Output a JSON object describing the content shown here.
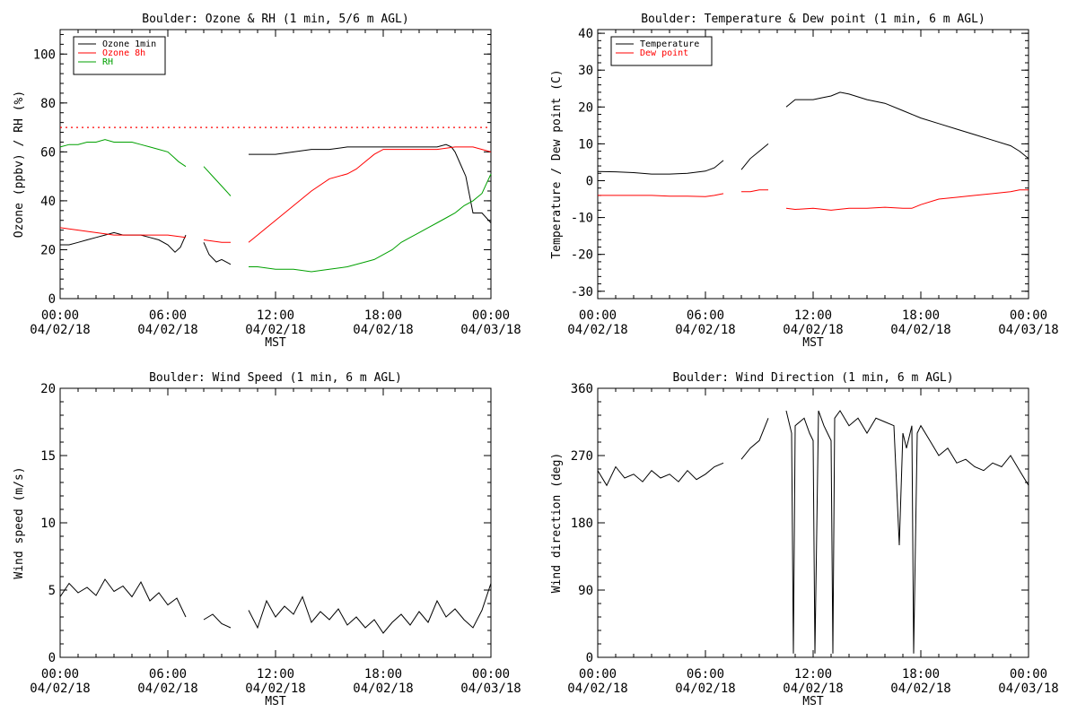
{
  "x_tick_labels": [
    [
      "00:00",
      "04/02/18"
    ],
    [
      "06:00",
      "04/02/18"
    ],
    [
      "12:00",
      "04/02/18"
    ],
    [
      "18:00",
      "04/02/18"
    ],
    [
      "00:00",
      "04/03/18"
    ]
  ],
  "chart_data": [
    {
      "type": "line",
      "title": "Boulder: Ozone & RH (1 min, 5/6 m AGL)",
      "xlabel": "MST",
      "ylabel": "Ozone (ppbv) / RH (%)",
      "xlim": [
        0,
        24
      ],
      "ylim": [
        0,
        110
      ],
      "yticks": [
        0,
        20,
        40,
        60,
        80,
        100
      ],
      "grid": false,
      "legend_position": "top-left",
      "reference_lines": [
        {
          "y": 70,
          "style": "dotted",
          "color": "#ff0000"
        }
      ],
      "series": [
        {
          "name": "Ozone 1min",
          "color": "#000000",
          "segments": [
            {
              "x": [
                0,
                0.5,
                1,
                1.5,
                2,
                2.5,
                3,
                3.5,
                4,
                4.5,
                5,
                5.5,
                6,
                6.4,
                6.7,
                7
              ],
              "y": [
                22,
                22,
                23,
                24,
                25,
                26,
                27,
                26,
                26,
                26,
                25,
                24,
                22,
                19,
                21,
                26
              ]
            },
            {
              "x": [
                8,
                8.3,
                8.7,
                9,
                9.5
              ],
              "y": [
                23,
                18,
                15,
                16,
                14
              ]
            },
            {
              "x": [
                10.5,
                11,
                12,
                13,
                14,
                15,
                16,
                17,
                18,
                19,
                20,
                20.5,
                21,
                21.5,
                21.8,
                22,
                22.3,
                22.6,
                23,
                23.5,
                24
              ],
              "y": [
                59,
                59,
                59,
                60,
                61,
                61,
                62,
                62,
                62,
                62,
                62,
                62,
                62,
                63,
                62,
                60,
                55,
                50,
                35,
                35,
                31
              ]
            }
          ]
        },
        {
          "name": "Ozone 8h",
          "color": "#ff0000",
          "segments": [
            {
              "x": [
                0,
                1,
                2,
                3,
                4,
                5,
                6,
                7
              ],
              "y": [
                29,
                28,
                27,
                26,
                26,
                26,
                26,
                25
              ]
            },
            {
              "x": [
                8,
                9,
                9.5
              ],
              "y": [
                24,
                23,
                23
              ]
            },
            {
              "x": [
                10.5,
                11,
                12,
                13,
                14,
                15,
                16,
                16.5,
                17,
                17.5,
                18,
                19,
                20,
                21,
                22,
                22.5,
                23,
                23.5,
                24
              ],
              "y": [
                23,
                26,
                32,
                38,
                44,
                49,
                51,
                53,
                56,
                59,
                61,
                61,
                61,
                61,
                62,
                62,
                62,
                61,
                60
              ]
            }
          ]
        },
        {
          "name": "RH",
          "color": "#00a000",
          "segments": [
            {
              "x": [
                0,
                0.5,
                1,
                1.5,
                2,
                2.5,
                3,
                3.5,
                4,
                4.5,
                5,
                5.5,
                6,
                6.3,
                6.6,
                7
              ],
              "y": [
                62,
                63,
                63,
                64,
                64,
                65,
                64,
                64,
                64,
                63,
                62,
                61,
                60,
                58,
                56,
                54
              ]
            },
            {
              "x": [
                8,
                8.5,
                9,
                9.5
              ],
              "y": [
                54,
                50,
                46,
                42
              ]
            },
            {
              "x": [
                10.5,
                11,
                12,
                13,
                14,
                15,
                16,
                17,
                17.5,
                18,
                18.5,
                19,
                19.5,
                20,
                20.5,
                21,
                21.5,
                22,
                22.5,
                23,
                23.5,
                24
              ],
              "y": [
                13,
                13,
                12,
                12,
                11,
                12,
                13,
                15,
                16,
                18,
                20,
                23,
                25,
                27,
                29,
                31,
                33,
                35,
                38,
                40,
                43,
                51
              ]
            }
          ]
        }
      ]
    },
    {
      "type": "line",
      "title": "Boulder: Temperature & Dew point (1 min, 6 m AGL)",
      "xlabel": "MST",
      "ylabel": "Temperature / Dew point (C)",
      "xlim": [
        0,
        24
      ],
      "ylim": [
        -32,
        41
      ],
      "yticks": [
        -30,
        -20,
        -10,
        0,
        10,
        20,
        30,
        40
      ],
      "grid": false,
      "legend_position": "top-left",
      "series": [
        {
          "name": "Temperature",
          "color": "#000000",
          "segments": [
            {
              "x": [
                0,
                1,
                2,
                3,
                4,
                5,
                6,
                6.5,
                7
              ],
              "y": [
                2.5,
                2.4,
                2.2,
                1.8,
                1.8,
                2.0,
                2.6,
                3.5,
                5.5
              ]
            },
            {
              "x": [
                8,
                8.5,
                9,
                9.5
              ],
              "y": [
                3,
                6,
                8,
                10
              ]
            },
            {
              "x": [
                10.5,
                11,
                11.5,
                12,
                12.5,
                13,
                13.5,
                14,
                15,
                16,
                17,
                18,
                19,
                20,
                21,
                22,
                23,
                23.5,
                24
              ],
              "y": [
                20,
                22,
                22,
                22,
                22.5,
                23,
                24,
                23.5,
                22,
                21,
                19,
                17,
                15.5,
                14,
                12.5,
                11,
                9.5,
                8,
                6
              ]
            }
          ]
        },
        {
          "name": "Dew point",
          "color": "#ff0000",
          "segments": [
            {
              "x": [
                0,
                1,
                2,
                3,
                4,
                5,
                6,
                6.5,
                7
              ],
              "y": [
                -4,
                -4,
                -4,
                -4,
                -4.2,
                -4.2,
                -4.3,
                -4,
                -3.5
              ]
            },
            {
              "x": [
                8,
                8.5,
                9,
                9.5
              ],
              "y": [
                -3,
                -3,
                -2.5,
                -2.5
              ]
            },
            {
              "x": [
                10.5,
                11,
                12,
                13,
                14,
                15,
                16,
                17,
                17.5,
                18,
                19,
                20,
                21,
                22,
                23,
                23.5,
                24
              ],
              "y": [
                -7.5,
                -7.8,
                -7.5,
                -8,
                -7.5,
                -7.5,
                -7.2,
                -7.5,
                -7.5,
                -6.5,
                -5,
                -4.5,
                -4,
                -3.5,
                -3,
                -2.5,
                -2.5
              ]
            }
          ]
        }
      ]
    },
    {
      "type": "line",
      "title": "Boulder: Wind Speed (1 min, 6 m AGL)",
      "xlabel": "MST",
      "ylabel": "Wind speed (m/s)",
      "xlim": [
        0,
        24
      ],
      "ylim": [
        0,
        20
      ],
      "yticks": [
        0,
        5,
        10,
        15,
        20
      ],
      "grid": false,
      "series": [
        {
          "color": "#000000",
          "segments": [
            {
              "x": [
                0,
                0.5,
                1,
                1.5,
                2,
                2.5,
                3,
                3.5,
                4,
                4.5,
                5,
                5.5,
                6,
                6.5,
                7
              ],
              "y": [
                4.5,
                5.5,
                4.8,
                5.2,
                4.6,
                5.8,
                4.9,
                5.3,
                4.5,
                5.6,
                4.2,
                4.8,
                3.9,
                4.4,
                3.0
              ]
            },
            {
              "x": [
                8,
                8.5,
                9,
                9.5
              ],
              "y": [
                2.8,
                3.2,
                2.5,
                2.2
              ]
            },
            {
              "x": [
                10.5,
                11,
                11.5,
                12,
                12.5,
                13,
                13.5,
                14,
                14.5,
                15,
                15.5,
                16,
                16.5,
                17,
                17.5,
                18,
                18.5,
                19,
                19.5,
                20,
                20.5,
                21,
                21.5,
                22,
                22.5,
                23,
                23.5,
                24
              ],
              "y": [
                3.5,
                2.2,
                4.2,
                3.0,
                3.8,
                3.2,
                4.5,
                2.6,
                3.4,
                2.8,
                3.6,
                2.4,
                3.0,
                2.2,
                2.8,
                1.8,
                2.6,
                3.2,
                2.4,
                3.4,
                2.6,
                4.2,
                3.0,
                3.6,
                2.8,
                2.2,
                3.5,
                5.5
              ]
            }
          ]
        }
      ]
    },
    {
      "type": "line",
      "title": "Boulder: Wind Direction (1 min, 6 m AGL)",
      "xlabel": "MST",
      "ylabel": "Wind direction (deg)",
      "xlim": [
        0,
        24
      ],
      "ylim": [
        0,
        360
      ],
      "yticks": [
        0,
        90,
        180,
        270,
        360
      ],
      "grid": false,
      "series": [
        {
          "color": "#000000",
          "segments": [
            {
              "x": [
                0,
                0.5,
                1,
                1.5,
                2,
                2.5,
                3,
                3.5,
                4,
                4.5,
                5,
                5.5,
                6,
                6.5,
                7
              ],
              "y": [
                250,
                230,
                255,
                240,
                245,
                235,
                250,
                240,
                245,
                235,
                250,
                238,
                245,
                255,
                260
              ]
            },
            {
              "x": [
                8,
                8.5,
                9,
                9.5
              ],
              "y": [
                265,
                280,
                290,
                320
              ]
            },
            {
              "x": [
                10.5,
                10.8,
                10.9,
                11,
                11.5,
                11.8,
                12,
                12.1,
                12.3,
                12.6,
                12.8,
                13,
                13.1,
                13.2,
                13.5,
                14,
                14.5,
                15,
                15.5,
                16,
                16.5,
                16.8,
                17,
                17.2,
                17.5,
                17.6,
                17.8,
                18,
                18.5,
                19,
                19.5,
                20,
                20.5,
                21,
                21.5,
                22,
                22.5,
                23,
                23.5,
                24
              ],
              "y": [
                330,
                300,
                5,
                310,
                320,
                300,
                290,
                5,
                330,
                310,
                300,
                290,
                5,
                320,
                330,
                310,
                320,
                300,
                320,
                315,
                310,
                150,
                300,
                280,
                310,
                5,
                300,
                310,
                290,
                270,
                280,
                260,
                265,
                255,
                250,
                260,
                255,
                270,
                250,
                230
              ]
            }
          ]
        }
      ]
    }
  ]
}
